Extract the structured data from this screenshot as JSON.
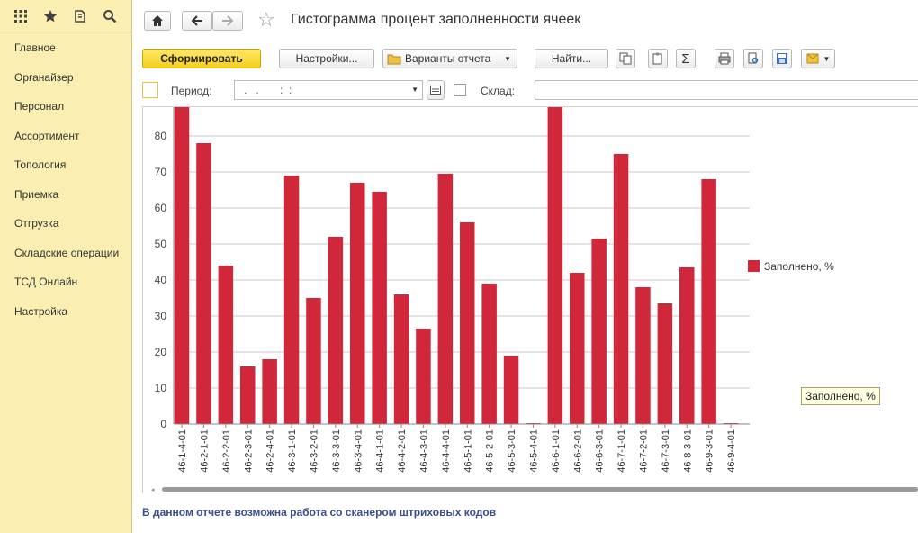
{
  "sidebar": {
    "icons": [
      "apps-grid-icon",
      "star-icon",
      "history-icon",
      "search-icon"
    ],
    "items": [
      {
        "label": "Главное"
      },
      {
        "label": "Органайзер"
      },
      {
        "label": "Персонал"
      },
      {
        "label": "Ассортимент"
      },
      {
        "label": "Топология"
      },
      {
        "label": "Приемка"
      },
      {
        "label": "Отгрузка"
      },
      {
        "label": "Складские операции"
      },
      {
        "label": "ТСД Онлайн"
      },
      {
        "label": "Настройка"
      }
    ]
  },
  "header": {
    "title": "Гистограмма процент заполненности ячеек"
  },
  "toolbar": {
    "generate_label": "Сформировать",
    "settings_label": "Настройки...",
    "variants_label": "Варианты отчета",
    "find_label": "Найти..."
  },
  "filters": {
    "period_label": "Период:",
    "period_value": ".   .       :  :",
    "warehouse_label": "Склад:",
    "warehouse_value": ""
  },
  "chart_data": {
    "type": "bar",
    "title": "",
    "xlabel": "",
    "ylabel": "",
    "ylim": [
      0,
      88
    ],
    "yticks": [
      0,
      10,
      20,
      30,
      40,
      50,
      60,
      70,
      80
    ],
    "legend_position": "right",
    "categories": [
      "46-1-4-01",
      "46-2-1-01",
      "46-2-2-01",
      "46-2-3-01",
      "46-2-4-01",
      "46-3-1-01",
      "46-3-2-01",
      "46-3-3-01",
      "46-3-4-01",
      "46-4-1-01",
      "46-4-2-01",
      "46-4-3-01",
      "46-4-4-01",
      "46-5-1-01",
      "46-5-2-01",
      "46-5-3-01",
      "46-5-4-01",
      "46-6-1-01",
      "46-6-2-01",
      "46-6-3-01",
      "46-7-1-01",
      "46-7-2-01",
      "46-7-3-01",
      "46-8-3-01",
      "46-9-3-01",
      "46-9-4-01"
    ],
    "series": [
      {
        "name": "Заполнено, %",
        "color": "#d0283a",
        "values": [
          88,
          78,
          44,
          16,
          18,
          69,
          35,
          52,
          67,
          64.5,
          36,
          26.5,
          69.5,
          56,
          39,
          19,
          0,
          88,
          42,
          51.5,
          75,
          38,
          33.5,
          43.5,
          68,
          0
        ]
      }
    ]
  },
  "tooltip": "Заполнено, %",
  "footer": "В данном отчете возможна работа со сканером штриховых кодов"
}
